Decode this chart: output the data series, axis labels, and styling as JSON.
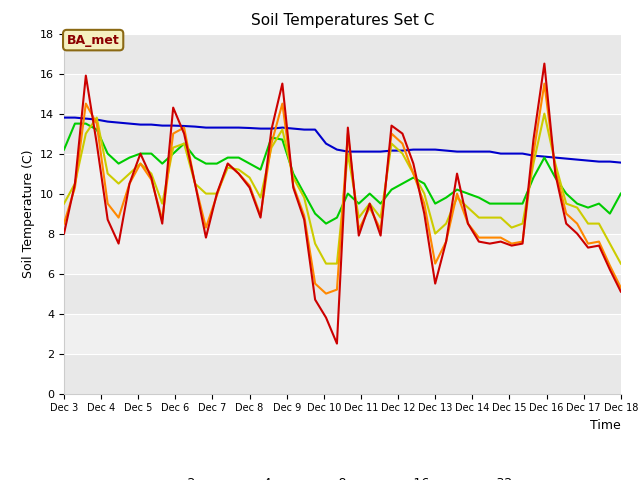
{
  "title": "Soil Temperatures Set C",
  "xlabel": "Time",
  "ylabel": "Soil Temperature (C)",
  "ylim": [
    0,
    18
  ],
  "yticks": [
    0,
    2,
    4,
    6,
    8,
    10,
    12,
    14,
    16,
    18
  ],
  "annotation": "BA_met",
  "x_labels": [
    "Dec 3",
    "Dec 4",
    "Dec 5",
    "Dec 6",
    "Dec 7",
    "Dec 8",
    "Dec 9",
    "Dec 10",
    "Dec 11",
    "Dec 12",
    "Dec 13",
    "Dec 14",
    "Dec 15",
    "Dec 16",
    "Dec 17",
    "Dec 18"
  ],
  "colors": {
    "-2cm": "#cc0000",
    "-4cm": "#ff8800",
    "-8cm": "#cccc00",
    "-16cm": "#00cc00",
    "-32cm": "#0000cc"
  },
  "band_colors": [
    "#e8e8e8",
    "#f0f0f0"
  ],
  "series": {
    "-2cm": [
      8.0,
      10.5,
      15.9,
      12.5,
      8.7,
      7.5,
      10.5,
      12.0,
      10.8,
      8.5,
      14.3,
      13.0,
      10.5,
      7.8,
      10.0,
      11.5,
      11.0,
      10.3,
      8.8,
      13.2,
      15.5,
      10.3,
      8.7,
      4.7,
      3.8,
      2.5,
      13.3,
      7.9,
      9.5,
      7.9,
      13.4,
      13.0,
      11.5,
      9.0,
      5.5,
      7.6,
      11.0,
      8.5,
      7.6,
      7.5,
      7.6,
      7.4,
      7.5,
      12.7,
      16.5,
      11.0,
      8.5,
      8.0,
      7.3,
      7.4,
      6.2,
      5.1
    ],
    "-4cm": [
      8.5,
      10.3,
      14.5,
      13.5,
      9.5,
      8.8,
      10.5,
      11.5,
      10.7,
      8.7,
      13.0,
      13.3,
      10.5,
      8.3,
      9.9,
      11.5,
      11.0,
      10.4,
      8.9,
      12.5,
      14.5,
      10.4,
      8.9,
      5.5,
      5.0,
      5.2,
      13.0,
      8.2,
      9.3,
      8.2,
      13.0,
      12.5,
      11.0,
      9.5,
      6.5,
      7.6,
      10.0,
      8.5,
      7.8,
      7.8,
      7.8,
      7.5,
      7.6,
      12.0,
      15.5,
      11.2,
      9.0,
      8.5,
      7.5,
      7.6,
      6.4,
      5.3
    ],
    "-8cm": [
      9.5,
      10.5,
      13.0,
      13.8,
      11.0,
      10.5,
      11.0,
      11.5,
      11.0,
      9.5,
      12.3,
      12.5,
      10.5,
      10.0,
      10.0,
      11.3,
      11.2,
      10.8,
      9.8,
      12.3,
      13.2,
      10.8,
      9.8,
      7.5,
      6.5,
      6.5,
      12.0,
      8.8,
      9.5,
      8.8,
      12.5,
      12.0,
      11.0,
      10.0,
      8.0,
      8.5,
      9.8,
      9.3,
      8.8,
      8.8,
      8.8,
      8.3,
      8.5,
      11.5,
      14.0,
      11.5,
      9.5,
      9.3,
      8.5,
      8.5,
      7.5,
      6.5
    ],
    "-16cm": [
      12.2,
      13.5,
      13.5,
      13.2,
      12.0,
      11.5,
      11.8,
      12.0,
      12.0,
      11.5,
      12.0,
      12.5,
      11.8,
      11.5,
      11.5,
      11.8,
      11.8,
      11.5,
      11.2,
      12.8,
      12.7,
      11.0,
      10.0,
      9.0,
      8.5,
      8.8,
      10.0,
      9.5,
      10.0,
      9.5,
      10.2,
      10.5,
      10.8,
      10.5,
      9.5,
      9.8,
      10.2,
      10.0,
      9.8,
      9.5,
      9.5,
      9.5,
      9.5,
      10.8,
      11.8,
      10.8,
      10.0,
      9.5,
      9.3,
      9.5,
      9.0,
      10.0
    ],
    "-32cm": [
      13.8,
      13.8,
      13.75,
      13.7,
      13.6,
      13.55,
      13.5,
      13.45,
      13.45,
      13.4,
      13.4,
      13.38,
      13.35,
      13.3,
      13.3,
      13.3,
      13.3,
      13.28,
      13.25,
      13.25,
      13.3,
      13.25,
      13.2,
      13.2,
      12.5,
      12.2,
      12.1,
      12.1,
      12.1,
      12.1,
      12.15,
      12.15,
      12.2,
      12.2,
      12.2,
      12.15,
      12.1,
      12.1,
      12.1,
      12.1,
      12.0,
      12.0,
      12.0,
      11.9,
      11.85,
      11.8,
      11.75,
      11.7,
      11.65,
      11.6,
      11.6,
      11.55
    ]
  }
}
